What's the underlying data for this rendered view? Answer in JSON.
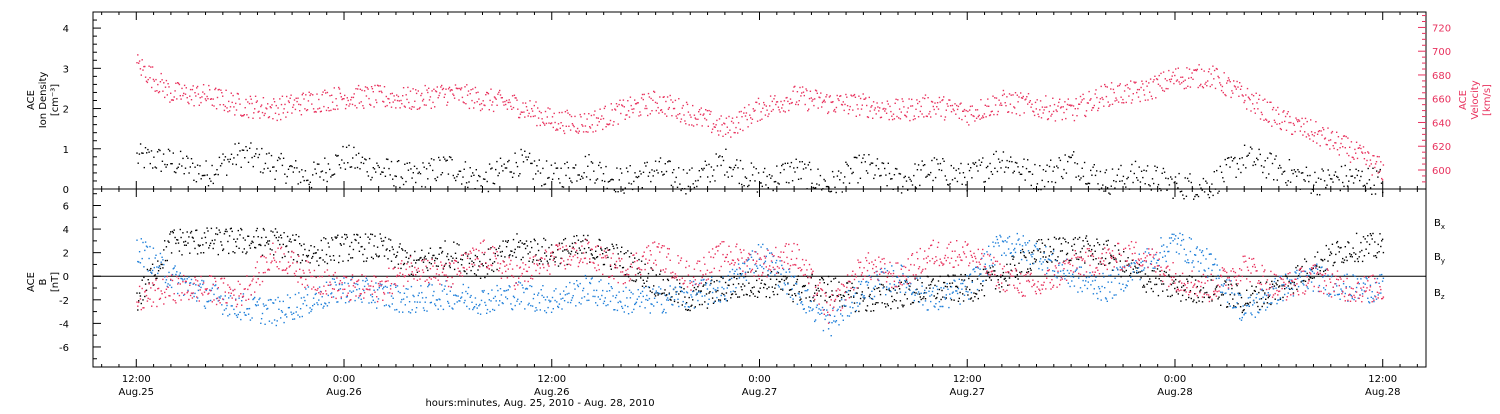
{
  "colors": {
    "density": "#000000",
    "velocity": "#e8325e",
    "bx": "#000000",
    "by": "#1f7fd9",
    "bz": "#e8325e",
    "frame": "#000000"
  },
  "chart_data": [
    {
      "type": "scatter",
      "panel": "top",
      "ylabel_left": [
        "ACE",
        "Ion Density",
        "[cm⁻³]"
      ],
      "ylabel_right": [
        "ACE",
        "Velocity",
        "[km/s]"
      ],
      "ylim_left": [
        0,
        4.4
      ],
      "ylim_right": [
        584,
        733
      ],
      "yticks_left": [
        0,
        1,
        2,
        3,
        4
      ],
      "yticks_right": [
        600,
        620,
        640,
        660,
        680,
        700,
        720
      ],
      "series": [
        {
          "name": "",
          "axis": "left",
          "color": "#000000",
          "x": [
            0,
            2,
            4,
            6,
            8,
            10,
            12,
            14,
            16,
            18,
            20,
            22,
            24,
            26,
            28,
            30,
            32,
            34,
            36,
            38,
            40,
            42,
            44,
            46,
            48,
            50,
            52,
            54,
            56,
            58,
            60,
            62,
            64,
            66,
            68,
            70,
            72
          ],
          "y": [
            0.8,
            0.7,
            0.4,
            0.9,
            0.6,
            0.3,
            0.8,
            0.5,
            0.3,
            0.6,
            0.2,
            0.7,
            0.3,
            0.6,
            0.2,
            0.5,
            0.2,
            0.7,
            0.2,
            0.5,
            0.1,
            0.6,
            0.2,
            0.5,
            0.3,
            0.8,
            0.3,
            0.7,
            0.2,
            0.4,
            0.1,
            0.1,
            0.8,
            0.5,
            0.2,
            0.3,
            0.2
          ]
        },
        {
          "name": "",
          "axis": "right",
          "color": "#e8325e",
          "x": [
            0,
            2,
            4,
            6,
            8,
            10,
            12,
            14,
            16,
            18,
            20,
            22,
            24,
            26,
            28,
            30,
            32,
            34,
            36,
            38,
            40,
            42,
            44,
            46,
            48,
            50,
            52,
            54,
            56,
            58,
            60,
            62,
            64,
            66,
            68,
            70,
            72
          ],
          "y": [
            690,
            665,
            663,
            655,
            652,
            658,
            662,
            662,
            660,
            665,
            660,
            655,
            642,
            640,
            650,
            658,
            648,
            635,
            652,
            662,
            657,
            655,
            650,
            655,
            648,
            658,
            654,
            650,
            664,
            666,
            678,
            680,
            662,
            643,
            632,
            618,
            600
          ]
        }
      ]
    },
    {
      "type": "scatter",
      "panel": "bottom",
      "ylabel_left": [
        "ACE",
        "B",
        "[nT]"
      ],
      "ylim": [
        -7.7,
        7.4
      ],
      "yticks": [
        -6,
        -4,
        -2,
        0,
        2,
        4,
        6
      ],
      "zero_line": true,
      "legend_position": "right",
      "series": [
        {
          "name": "Bx",
          "color": "#000000",
          "x": [
            0,
            2,
            4,
            6,
            8,
            10,
            12,
            14,
            16,
            18,
            20,
            22,
            24,
            26,
            28,
            30,
            32,
            34,
            36,
            38,
            40,
            42,
            44,
            46,
            48,
            50,
            52,
            54,
            56,
            58,
            60,
            62,
            64,
            66,
            68,
            70,
            72
          ],
          "y": [
            -2,
            3,
            3,
            3,
            3,
            2,
            2.5,
            2.5,
            1,
            2,
            1,
            2.5,
            2,
            2.5,
            1.5,
            -0.5,
            -2,
            -1,
            -0.5,
            -1,
            -1,
            -2,
            -1.5,
            -1,
            -1,
            0,
            2,
            2.5,
            2,
            0,
            -1,
            -1,
            -2,
            -1,
            1,
            2.5,
            2.5
          ]
        },
        {
          "name": "By",
          "color": "#1f7fd9",
          "x": [
            0,
            2,
            4,
            6,
            8,
            10,
            12,
            14,
            16,
            18,
            20,
            22,
            24,
            26,
            28,
            30,
            32,
            34,
            36,
            38,
            40,
            42,
            44,
            46,
            48,
            50,
            52,
            54,
            56,
            58,
            60,
            62,
            64,
            66,
            68,
            70,
            72
          ],
          "y": [
            2.5,
            0,
            -1.5,
            -2.5,
            -3,
            -2,
            -1,
            -1.5,
            -2,
            -1.5,
            -2,
            -1.5,
            -2,
            -1,
            -2,
            -2,
            -1.5,
            -1,
            2,
            -1,
            -4,
            -1,
            0,
            -2,
            -1,
            3,
            2,
            0,
            -1,
            1,
            3,
            1,
            -3,
            -1,
            0,
            -1,
            -1
          ]
        },
        {
          "name": "Bz",
          "color": "#e8325e",
          "x": [
            0,
            2,
            4,
            6,
            8,
            10,
            12,
            14,
            16,
            18,
            20,
            22,
            24,
            26,
            28,
            30,
            32,
            34,
            36,
            38,
            40,
            42,
            44,
            46,
            48,
            50,
            52,
            54,
            56,
            58,
            60,
            62,
            64,
            66,
            68,
            70,
            72
          ],
          "y": [
            -2,
            -1,
            -1,
            -1.5,
            2,
            0,
            -1,
            -1,
            1,
            0,
            2,
            0,
            1.5,
            2,
            0.5,
            2,
            0,
            2,
            1,
            2,
            -3,
            1,
            0,
            2,
            2,
            0,
            -1,
            1,
            1.5,
            2,
            0,
            -1,
            1,
            -1,
            0,
            -1,
            -1
          ]
        }
      ]
    }
  ],
  "legend_labels": [
    {
      "base": "B",
      "sub": "x"
    },
    {
      "base": "B",
      "sub": "y"
    },
    {
      "base": "B",
      "sub": "z"
    }
  ],
  "xaxis": {
    "range_hours": [
      -2.5,
      74.5
    ],
    "ticks": [
      {
        "hour": 0,
        "time": "12:00",
        "date": "Aug.25"
      },
      {
        "hour": 12,
        "time": "0:00",
        "date": "Aug.26"
      },
      {
        "hour": 24,
        "time": "12:00",
        "date": "Aug.26"
      },
      {
        "hour": 36,
        "time": "0:00",
        "date": "Aug.27"
      },
      {
        "hour": 48,
        "time": "12:00",
        "date": "Aug.27"
      },
      {
        "hour": 60,
        "time": "0:00",
        "date": "Aug.28"
      },
      {
        "hour": 72,
        "time": "12:00",
        "date": "Aug.28"
      }
    ],
    "title": "hours:minutes, Aug. 25, 2010 - Aug. 28, 2010"
  }
}
